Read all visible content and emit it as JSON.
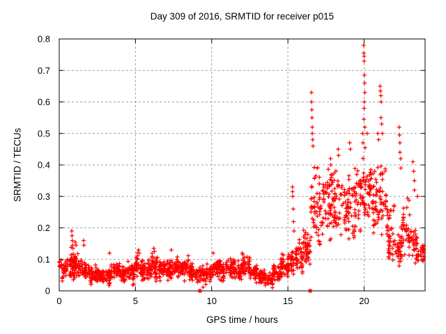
{
  "figure": {
    "background": "#ffffff",
    "plot_border_color": "#000000"
  },
  "chart_data": {
    "type": "scatter",
    "title": "Day 309 of 2016, SRMTID for receiver p015",
    "xlabel": "GPS time / hours",
    "ylabel": "SRMTID / TECUs",
    "xlim": [
      0,
      24
    ],
    "ylim": [
      0,
      0.8
    ],
    "xticks": {
      "values": [
        0,
        5,
        10,
        15,
        20
      ],
      "labels": [
        "0",
        "5",
        "10",
        "15",
        "20"
      ]
    },
    "yticks": {
      "values": [
        0,
        0.1,
        0.2,
        0.3,
        0.4,
        0.5,
        0.6,
        0.7,
        0.8
      ],
      "labels": [
        "0",
        "0.1",
        "0.2",
        "0.3",
        "0.4",
        "0.5",
        "0.6",
        "0.7",
        "0.8"
      ]
    },
    "grid": {
      "show": true,
      "style": "dashed",
      "color": "#9e9e9e"
    },
    "legend": "none",
    "marker": {
      "glyph": "+",
      "color": "#ff0000",
      "size": 7
    },
    "series": [
      {
        "name": "SRMTID",
        "encoding": "binned_envelope",
        "bin_format": [
          "t_start_hours",
          "y_low_TECUs",
          "y_high_TECUs",
          "point_count"
        ],
        "bin_width_hours": 0.5,
        "seed": 309,
        "bins": [
          [
            0.0,
            0.04,
            0.11,
            40
          ],
          [
            0.5,
            0.04,
            0.13,
            42
          ],
          [
            1.0,
            0.04,
            0.12,
            40
          ],
          [
            1.5,
            0.03,
            0.1,
            40
          ],
          [
            2.0,
            0.02,
            0.07,
            42
          ],
          [
            2.5,
            0.02,
            0.07,
            40
          ],
          [
            3.0,
            0.02,
            0.08,
            40
          ],
          [
            3.5,
            0.03,
            0.09,
            40
          ],
          [
            4.0,
            0.03,
            0.08,
            40
          ],
          [
            4.5,
            0.03,
            0.09,
            40
          ],
          [
            5.0,
            0.04,
            0.12,
            42
          ],
          [
            5.5,
            0.03,
            0.1,
            40
          ],
          [
            6.0,
            0.04,
            0.12,
            42
          ],
          [
            6.5,
            0.04,
            0.1,
            40
          ],
          [
            7.0,
            0.03,
            0.1,
            40
          ],
          [
            7.5,
            0.04,
            0.11,
            40
          ],
          [
            8.0,
            0.04,
            0.11,
            40
          ],
          [
            8.5,
            0.03,
            0.09,
            40
          ],
          [
            9.0,
            0.02,
            0.08,
            38
          ],
          [
            9.5,
            0.03,
            0.09,
            40
          ],
          [
            10.0,
            0.04,
            0.1,
            40
          ],
          [
            10.5,
            0.04,
            0.1,
            40
          ],
          [
            11.0,
            0.04,
            0.11,
            40
          ],
          [
            11.5,
            0.03,
            0.1,
            40
          ],
          [
            12.0,
            0.04,
            0.12,
            42
          ],
          [
            12.5,
            0.03,
            0.09,
            40
          ],
          [
            13.0,
            0.02,
            0.07,
            38
          ],
          [
            13.5,
            0.01,
            0.06,
            36
          ],
          [
            14.0,
            0.03,
            0.08,
            40
          ],
          [
            14.5,
            0.04,
            0.11,
            40
          ],
          [
            15.0,
            0.05,
            0.13,
            42
          ],
          [
            15.5,
            0.05,
            0.16,
            44
          ],
          [
            16.0,
            0.06,
            0.2,
            44
          ],
          [
            16.5,
            0.12,
            0.45,
            40
          ],
          [
            17.0,
            0.12,
            0.38,
            38
          ],
          [
            17.5,
            0.14,
            0.42,
            38
          ],
          [
            18.0,
            0.15,
            0.4,
            36
          ],
          [
            18.5,
            0.14,
            0.38,
            36
          ],
          [
            19.0,
            0.15,
            0.42,
            36
          ],
          [
            19.5,
            0.16,
            0.44,
            36
          ],
          [
            20.0,
            0.18,
            0.46,
            38
          ],
          [
            20.5,
            0.15,
            0.42,
            36
          ],
          [
            21.0,
            0.14,
            0.42,
            36
          ],
          [
            21.5,
            0.07,
            0.28,
            40
          ],
          [
            22.0,
            0.07,
            0.22,
            42
          ],
          [
            22.5,
            0.08,
            0.3,
            36
          ],
          [
            23.0,
            0.07,
            0.2,
            34
          ],
          [
            23.5,
            0.07,
            0.16,
            26
          ]
        ],
        "spike_points": [
          [
            0.82,
            0.19
          ],
          [
            0.84,
            0.175
          ],
          [
            0.86,
            0.16
          ],
          [
            0.88,
            0.145
          ],
          [
            0.9,
            0.135
          ],
          [
            1.05,
            0.155
          ],
          [
            1.1,
            0.145
          ],
          [
            1.6,
            0.16
          ],
          [
            1.62,
            0.145
          ],
          [
            3.3,
            0.12
          ],
          [
            5.2,
            0.13
          ],
          [
            5.25,
            0.12
          ],
          [
            6.2,
            0.135
          ],
          [
            6.25,
            0.125
          ],
          [
            7.35,
            0.13
          ],
          [
            10.1,
            0.12
          ],
          [
            12.0,
            0.12
          ],
          [
            12.05,
            0.115
          ],
          [
            15.3,
            0.33
          ],
          [
            15.3,
            0.315
          ],
          [
            15.32,
            0.3
          ],
          [
            15.35,
            0.26
          ],
          [
            15.37,
            0.22
          ],
          [
            15.4,
            0.19
          ],
          [
            16.55,
            0.63
          ],
          [
            16.55,
            0.6
          ],
          [
            16.57,
            0.575
          ],
          [
            16.58,
            0.55
          ],
          [
            16.6,
            0.52
          ],
          [
            16.6,
            0.5
          ],
          [
            16.62,
            0.48
          ],
          [
            16.65,
            0.46
          ],
          [
            17.8,
            0.42
          ],
          [
            17.82,
            0.4
          ],
          [
            17.85,
            0.37
          ],
          [
            18.3,
            0.45
          ],
          [
            18.32,
            0.43
          ],
          [
            19.05,
            0.47
          ],
          [
            19.1,
            0.45
          ],
          [
            19.9,
            0.5
          ],
          [
            19.92,
            0.47
          ],
          [
            19.97,
            0.78
          ],
          [
            19.98,
            0.755
          ],
          [
            20.0,
            0.745
          ],
          [
            20.0,
            0.73
          ],
          [
            20.02,
            0.685
          ],
          [
            20.03,
            0.66
          ],
          [
            20.05,
            0.63
          ],
          [
            20.02,
            0.6
          ],
          [
            20.0,
            0.58
          ],
          [
            19.98,
            0.545
          ],
          [
            20.05,
            0.52
          ],
          [
            20.2,
            0.5
          ],
          [
            20.9,
            0.5
          ],
          [
            20.95,
            0.48
          ],
          [
            21.05,
            0.65
          ],
          [
            21.07,
            0.635
          ],
          [
            21.1,
            0.62
          ],
          [
            21.12,
            0.6
          ],
          [
            21.1,
            0.55
          ],
          [
            21.15,
            0.53
          ],
          [
            21.2,
            0.5
          ],
          [
            22.3,
            0.52
          ],
          [
            22.32,
            0.495
          ],
          [
            22.35,
            0.47
          ],
          [
            22.35,
            0.44
          ],
          [
            22.4,
            0.42
          ],
          [
            22.42,
            0.39
          ],
          [
            23.2,
            0.41
          ],
          [
            23.25,
            0.38
          ],
          [
            23.3,
            0.35
          ],
          [
            23.3,
            0.32
          ],
          [
            23.5,
            0.3
          ]
        ],
        "baseline_squares_x": [
          9.23,
          16.46
        ]
      }
    ]
  }
}
